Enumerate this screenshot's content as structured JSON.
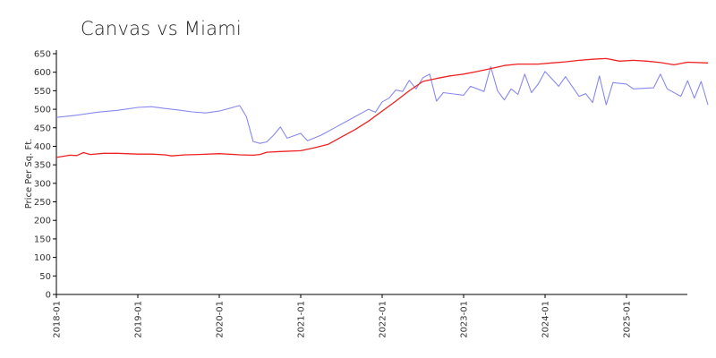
{
  "chart_data": {
    "type": "line",
    "title": "Canvas vs Miami",
    "xlabel": "",
    "ylabel": "Price Per Sq. Ft.",
    "ylim": [
      0,
      650
    ],
    "yticks": [
      0,
      50,
      100,
      150,
      200,
      250,
      300,
      350,
      400,
      450,
      500,
      550,
      600,
      650
    ],
    "xlim": [
      "2018-01",
      "2025-12"
    ],
    "xticks": [
      "2018-01",
      "2019-01",
      "2020-01",
      "2021-01",
      "2022-01",
      "2023-01",
      "2024-01",
      "2025-01"
    ],
    "grid": false,
    "legend": "none",
    "series": [
      {
        "color": "#8888ee",
        "points": [
          [
            "2018-01",
            478
          ],
          [
            "2018-04",
            484
          ],
          [
            "2018-07",
            492
          ],
          [
            "2018-10",
            497
          ],
          [
            "2019-01",
            505
          ],
          [
            "2019-03",
            507
          ],
          [
            "2019-05",
            502
          ],
          [
            "2019-07",
            498
          ],
          [
            "2019-09",
            493
          ],
          [
            "2019-11",
            490
          ],
          [
            "2020-01",
            495
          ],
          [
            "2020-03",
            505
          ],
          [
            "2020-04",
            510
          ],
          [
            "2020-05",
            480
          ],
          [
            "2020-06",
            413
          ],
          [
            "2020-07",
            408
          ],
          [
            "2020-08",
            412
          ],
          [
            "2020-09",
            430
          ],
          [
            "2020-10",
            452
          ],
          [
            "2020-11",
            422
          ],
          [
            "2021-01",
            435
          ],
          [
            "2021-02",
            415
          ],
          [
            "2021-04",
            430
          ],
          [
            "2021-06",
            450
          ],
          [
            "2021-08",
            470
          ],
          [
            "2021-10",
            490
          ],
          [
            "2021-11",
            500
          ],
          [
            "2021-12",
            492
          ],
          [
            "2022-01",
            520
          ],
          [
            "2022-02",
            530
          ],
          [
            "2022-03",
            552
          ],
          [
            "2022-04",
            548
          ],
          [
            "2022-05",
            578
          ],
          [
            "2022-06",
            555
          ],
          [
            "2022-07",
            585
          ],
          [
            "2022-08",
            595
          ],
          [
            "2022-09",
            522
          ],
          [
            "2022-10",
            545
          ],
          [
            "2023-01",
            538
          ],
          [
            "2023-02",
            562
          ],
          [
            "2023-04",
            548
          ],
          [
            "2023-05",
            615
          ],
          [
            "2023-06",
            550
          ],
          [
            "2023-07",
            525
          ],
          [
            "2023-08",
            555
          ],
          [
            "2023-09",
            540
          ],
          [
            "2023-10",
            595
          ],
          [
            "2023-11",
            545
          ],
          [
            "2023-12",
            568
          ],
          [
            "2024-01",
            602
          ],
          [
            "2024-03",
            562
          ],
          [
            "2024-04",
            588
          ],
          [
            "2024-06",
            535
          ],
          [
            "2024-07",
            542
          ],
          [
            "2024-08",
            518
          ],
          [
            "2024-09",
            590
          ],
          [
            "2024-10",
            512
          ],
          [
            "2024-11",
            572
          ],
          [
            "2025-01",
            568
          ],
          [
            "2025-02",
            555
          ],
          [
            "2025-05",
            558
          ],
          [
            "2025-06",
            595
          ],
          [
            "2025-07",
            555
          ],
          [
            "2025-09",
            535
          ],
          [
            "2025-10",
            577
          ],
          [
            "2025-11",
            530
          ],
          [
            "2025-12",
            575
          ],
          [
            "2026-01",
            512
          ]
        ]
      },
      {
        "color": "#ee2222",
        "points": [
          [
            "2018-01",
            370
          ],
          [
            "2018-03",
            376
          ],
          [
            "2018-04",
            375
          ],
          [
            "2018-05",
            383
          ],
          [
            "2018-06",
            378
          ],
          [
            "2018-08",
            381
          ],
          [
            "2018-10",
            381
          ],
          [
            "2019-01",
            379
          ],
          [
            "2019-03",
            379
          ],
          [
            "2019-05",
            377
          ],
          [
            "2019-06",
            374
          ],
          [
            "2019-08",
            377
          ],
          [
            "2019-10",
            378
          ],
          [
            "2020-01",
            380
          ],
          [
            "2020-04",
            377
          ],
          [
            "2020-06",
            376
          ],
          [
            "2020-07",
            378
          ],
          [
            "2020-08",
            384
          ],
          [
            "2020-10",
            386
          ],
          [
            "2021-01",
            388
          ],
          [
            "2021-03",
            396
          ],
          [
            "2021-05",
            405
          ],
          [
            "2021-07",
            425
          ],
          [
            "2021-09",
            445
          ],
          [
            "2021-11",
            468
          ],
          [
            "2022-01",
            495
          ],
          [
            "2022-03",
            522
          ],
          [
            "2022-05",
            550
          ],
          [
            "2022-07",
            575
          ],
          [
            "2022-09",
            583
          ],
          [
            "2022-11",
            590
          ],
          [
            "2023-01",
            595
          ],
          [
            "2023-03",
            602
          ],
          [
            "2023-05",
            610
          ],
          [
            "2023-07",
            618
          ],
          [
            "2023-09",
            622
          ],
          [
            "2023-12",
            622
          ],
          [
            "2024-02",
            625
          ],
          [
            "2024-04",
            628
          ],
          [
            "2024-06",
            632
          ],
          [
            "2024-08",
            635
          ],
          [
            "2024-10",
            637
          ],
          [
            "2024-12",
            630
          ],
          [
            "2025-02",
            632
          ],
          [
            "2025-04",
            630
          ],
          [
            "2025-06",
            626
          ],
          [
            "2025-08",
            620
          ],
          [
            "2025-10",
            627
          ],
          [
            "2026-01",
            625
          ]
        ]
      }
    ]
  }
}
